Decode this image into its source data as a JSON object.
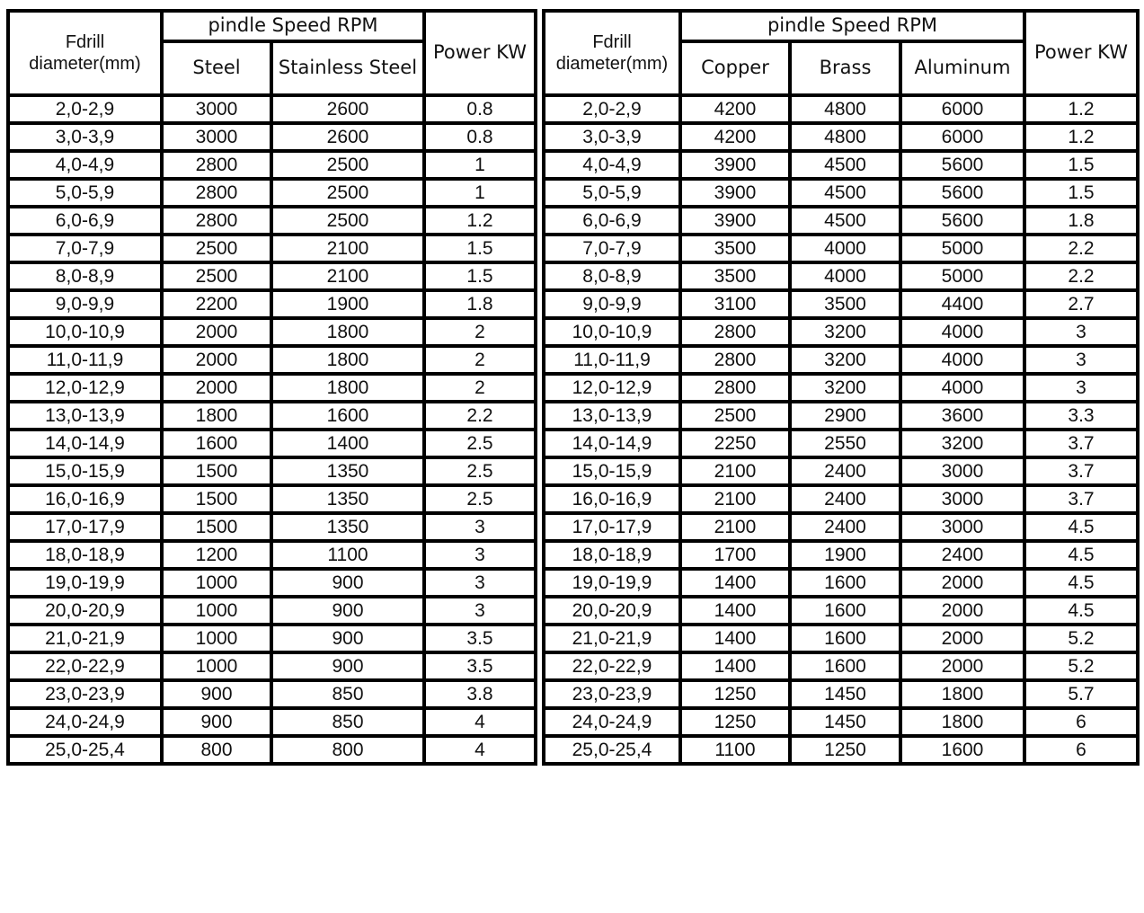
{
  "left_table": {
    "headers": {
      "diameter": "Fdrill diameter(mm)",
      "group": "pindle Speed RPM",
      "cols": [
        "Steel",
        "Stainless Steel"
      ],
      "power": "Power KW"
    },
    "rows": [
      [
        "2,0-2,9",
        "3000",
        "2600",
        "0.8"
      ],
      [
        "3,0-3,9",
        "3000",
        "2600",
        "0.8"
      ],
      [
        "4,0-4,9",
        "2800",
        "2500",
        "1"
      ],
      [
        "5,0-5,9",
        "2800",
        "2500",
        "1"
      ],
      [
        "6,0-6,9",
        "2800",
        "2500",
        "1.2"
      ],
      [
        "7,0-7,9",
        "2500",
        "2100",
        "1.5"
      ],
      [
        "8,0-8,9",
        "2500",
        "2100",
        "1.5"
      ],
      [
        "9,0-9,9",
        "2200",
        "1900",
        "1.8"
      ],
      [
        "10,0-10,9",
        "2000",
        "1800",
        "2"
      ],
      [
        "11,0-11,9",
        "2000",
        "1800",
        "2"
      ],
      [
        "12,0-12,9",
        "2000",
        "1800",
        "2"
      ],
      [
        "13,0-13,9",
        "1800",
        "1600",
        "2.2"
      ],
      [
        "14,0-14,9",
        "1600",
        "1400",
        "2.5"
      ],
      [
        "15,0-15,9",
        "1500",
        "1350",
        "2.5"
      ],
      [
        "16,0-16,9",
        "1500",
        "1350",
        "2.5"
      ],
      [
        "17,0-17,9",
        "1500",
        "1350",
        "3"
      ],
      [
        "18,0-18,9",
        "1200",
        "1100",
        "3"
      ],
      [
        "19,0-19,9",
        "1000",
        "900",
        "3"
      ],
      [
        "20,0-20,9",
        "1000",
        "900",
        "3"
      ],
      [
        "21,0-21,9",
        "1000",
        "900",
        "3.5"
      ],
      [
        "22,0-22,9",
        "1000",
        "900",
        "3.5"
      ],
      [
        "23,0-23,9",
        "900",
        "850",
        "3.8"
      ],
      [
        "24,0-24,9",
        "900",
        "850",
        "4"
      ],
      [
        "25,0-25,4",
        "800",
        "800",
        "4"
      ]
    ]
  },
  "right_table": {
    "headers": {
      "diameter": "Fdrill diameter(mm)",
      "group": "pindle Speed RPM",
      "cols": [
        "Copper",
        "Brass",
        "Aluminum"
      ],
      "power": "Power KW"
    },
    "rows": [
      [
        "2,0-2,9",
        "4200",
        "4800",
        "6000",
        "1.2"
      ],
      [
        "3,0-3,9",
        "4200",
        "4800",
        "6000",
        "1.2"
      ],
      [
        "4,0-4,9",
        "3900",
        "4500",
        "5600",
        "1.5"
      ],
      [
        "5,0-5,9",
        "3900",
        "4500",
        "5600",
        "1.5"
      ],
      [
        "6,0-6,9",
        "3900",
        "4500",
        "5600",
        "1.8"
      ],
      [
        "7,0-7,9",
        "3500",
        "4000",
        "5000",
        "2.2"
      ],
      [
        "8,0-8,9",
        "3500",
        "4000",
        "5000",
        "2.2"
      ],
      [
        "9,0-9,9",
        "3100",
        "3500",
        "4400",
        "2.7"
      ],
      [
        "10,0-10,9",
        "2800",
        "3200",
        "4000",
        "3"
      ],
      [
        "11,0-11,9",
        "2800",
        "3200",
        "4000",
        "3"
      ],
      [
        "12,0-12,9",
        "2800",
        "3200",
        "4000",
        "3"
      ],
      [
        "13,0-13,9",
        "2500",
        "2900",
        "3600",
        "3.3"
      ],
      [
        "14,0-14,9",
        "2250",
        "2550",
        "3200",
        "3.7"
      ],
      [
        "15,0-15,9",
        "2100",
        "2400",
        "3000",
        "3.7"
      ],
      [
        "16,0-16,9",
        "2100",
        "2400",
        "3000",
        "3.7"
      ],
      [
        "17,0-17,9",
        "2100",
        "2400",
        "3000",
        "4.5"
      ],
      [
        "18,0-18,9",
        "1700",
        "1900",
        "2400",
        "4.5"
      ],
      [
        "19,0-19,9",
        "1400",
        "1600",
        "2000",
        "4.5"
      ],
      [
        "20,0-20,9",
        "1400",
        "1600",
        "2000",
        "4.5"
      ],
      [
        "21,0-21,9",
        "1400",
        "1600",
        "2000",
        "5.2"
      ],
      [
        "22,0-22,9",
        "1400",
        "1600",
        "2000",
        "5.2"
      ],
      [
        "23,0-23,9",
        "1250",
        "1450",
        "1800",
        "5.7"
      ],
      [
        "24,0-24,9",
        "1250",
        "1450",
        "1800",
        "6"
      ],
      [
        "25,0-25,4",
        "1100",
        "1250",
        "1600",
        "6"
      ]
    ]
  }
}
